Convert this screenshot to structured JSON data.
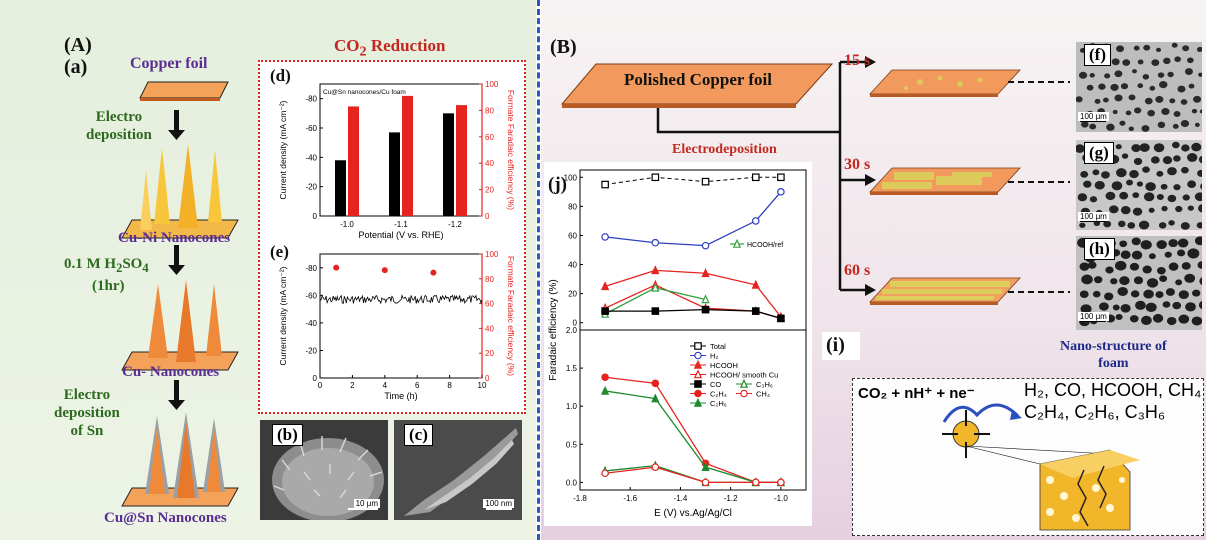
{
  "left": {
    "label_A": "(A)",
    "label_a": "(a)",
    "copper_foil": "Copper foil",
    "step1": "Electro\ndeposition",
    "cu_ni": "Cu-Ni Nanocones",
    "step2_a": "0.1 M H",
    "step2_sub": "2",
    "step2_b": "SO",
    "step2_sub2": "4",
    "step2_time": "(1hr)",
    "cu_nano": "Cu- Nanocones",
    "step3": "Electro\ndeposition\nof Sn",
    "cu_sn": "Cu@Sn Nanocones",
    "co2_title_a": "CO",
    "co2_title_sub": "2",
    "co2_title_b": " Reduction",
    "label_d": "(d)",
    "label_e": "(e)",
    "label_b": "(b)",
    "label_c": "(c)",
    "scale_b": "10 μm",
    "scale_c": "100 nm"
  },
  "right": {
    "label_B": "(B)",
    "polished": "Polished Copper foil",
    "electrodeposition": "Electrodeposition",
    "t15": "15 s",
    "t30": "30 s",
    "t60": "60 s",
    "label_f": "(f)",
    "label_g": "(g)",
    "label_h": "(h)",
    "label_i": "(i)",
    "label_j": "(j)",
    "scale_f": "100 μm",
    "scale_g": "100 μm",
    "scale_h": "100 μm",
    "nano_foam": "Nano-structure of\nfoam",
    "reaction_left": "CO₂ + nH⁺ + ne⁻",
    "reaction_right1": "H₂, CO, HCOOH, CH₄",
    "reaction_right2": "C₂H₄, C₂H₆, C₃H₆"
  },
  "chart_data": [
    {
      "id": "d",
      "type": "bar",
      "legend": "Cu@Sn nanocones/Cu foam",
      "xlabel": "Potential (V vs. RHE)",
      "ylabel_left": "Current density (mA cm⁻²)",
      "ylabel_right": "Formate Faradaic efficiency (%)",
      "categories": [
        "-1.0",
        "-1.1",
        "-1.2"
      ],
      "left_ticks": [
        "0",
        "-20",
        "-40",
        "-60",
        "-80"
      ],
      "right_ticks": [
        "0",
        "20",
        "40",
        "60",
        "80",
        "100"
      ],
      "left_ylim": [
        0,
        -90
      ],
      "right_ylim": [
        0,
        100
      ],
      "series": [
        {
          "name": "Current density",
          "color": "#000000",
          "values": [
            -38,
            -57,
            -70
          ]
        },
        {
          "name": "Formate FE",
          "color": "#e5231f",
          "values": [
            83,
            91,
            84
          ]
        }
      ]
    },
    {
      "id": "e",
      "type": "line",
      "xlabel": "Time (h)",
      "ylabel_left": "Current density (mA cm⁻²)",
      "ylabel_right": "Formate Faradaic efficiency (%)",
      "x_ticks": [
        "0",
        "2",
        "4",
        "6",
        "8",
        "10"
      ],
      "left_ticks": [
        "0",
        "-20",
        "-40",
        "-60",
        "-80"
      ],
      "right_ticks": [
        "0",
        "20",
        "40",
        "60",
        "80",
        "100"
      ],
      "xlim": [
        0,
        10
      ],
      "left_ylim": [
        0,
        -90
      ],
      "right_ylim": [
        0,
        100
      ],
      "fe_points": [
        {
          "x": 1,
          "y": 89
        },
        {
          "x": 4,
          "y": 87
        },
        {
          "x": 7,
          "y": 85
        }
      ],
      "current_mean": -57
    },
    {
      "id": "j",
      "type": "line",
      "xlabel": "E (V) vs.Ag/Ag/Cl",
      "ylabel": "Faradaic efficiency (%)",
      "x": [
        -1.7,
        -1.5,
        -1.3,
        -1.1,
        -1.0
      ],
      "x_ticks": [
        "-1.8",
        "-1.6",
        "-1.4",
        "-1.2",
        "-1.0"
      ],
      "xlim": [
        -1.8,
        -0.9
      ],
      "top": {
        "ylim": [
          -5,
          105
        ],
        "y_ticks": [
          "0",
          "20",
          "40",
          "60",
          "80",
          "100"
        ],
        "series": [
          {
            "name": "Total",
            "color": "#000000",
            "dash": true,
            "marker": "square-open",
            "values": [
              95,
              100,
              97,
              100,
              100
            ]
          },
          {
            "name": "H2",
            "color": "#2d3fbf",
            "marker": "circle-open",
            "values": [
              59,
              55,
              53,
              70,
              90
            ]
          },
          {
            "name": "HCOOH",
            "color": "#e5231f",
            "marker": "triangle",
            "values": [
              25,
              36,
              34,
              26,
              4
            ]
          },
          {
            "name": "HCOOH/smooth Cu",
            "color": "#e5231f",
            "marker": "triangle-open",
            "values": [
              10,
              26,
              10,
              8,
              3
            ]
          },
          {
            "name": "HCOOH/ref",
            "color": "#32a040",
            "marker": "triangle-open",
            "values": [
              6,
              24,
              16,
              null,
              null
            ]
          },
          {
            "name": "CO",
            "color": "#000000",
            "marker": "square",
            "values": [
              8,
              8,
              9,
              8,
              3
            ]
          }
        ],
        "legend_entry": "HCOOH/ref"
      },
      "bottom": {
        "ylim": [
          -0.1,
          2.0
        ],
        "y_ticks": [
          "0.0",
          "0.5",
          "1.0",
          "1.5",
          "2.0"
        ],
        "series": [
          {
            "name": "C2H4",
            "color": "#e5231f",
            "marker": "circle",
            "values": [
              1.38,
              1.3,
              0.25,
              0.0,
              0.0
            ]
          },
          {
            "name": "C2H6",
            "color": "#1e8a2e",
            "marker": "triangle",
            "values": [
              1.2,
              1.1,
              0.2,
              0.0,
              0.0
            ]
          },
          {
            "name": "C3H6",
            "color": "#1e8a2e",
            "marker": "triangle-open",
            "values": [
              0.15,
              0.22,
              0.0,
              0.0,
              0.0
            ]
          },
          {
            "name": "CH4",
            "color": "#e5231f",
            "marker": "circle-open",
            "values": [
              0.12,
              0.2,
              0.0,
              0.0,
              0.0
            ]
          }
        ]
      },
      "legend": [
        "Total",
        "H₂",
        "HCOOH",
        "HCOOH/ smooth Cu",
        "CO",
        "C₃H₆",
        "C₂H₄",
        "CH₄",
        "C₂H₆"
      ]
    }
  ]
}
